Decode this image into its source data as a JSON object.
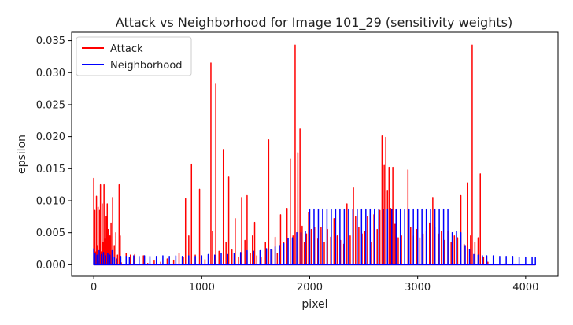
{
  "chart_data": {
    "type": "line",
    "title": "Attack vs Neighborhood for Image 101_29 (sensitivity weights)",
    "xlabel": "pixel",
    "ylabel": "epsilon",
    "xlim": [
      -205,
      4300
    ],
    "ylim": [
      -0.0018,
      0.0363
    ],
    "xticks": [
      0,
      1000,
      2000,
      3000,
      4000
    ],
    "xtick_labels": [
      "0",
      "1000",
      "2000",
      "3000",
      "4000"
    ],
    "yticks": [
      0.0,
      0.005,
      0.01,
      0.015,
      0.02,
      0.025,
      0.03,
      0.035
    ],
    "ytick_labels": [
      "0.000",
      "0.005",
      "0.010",
      "0.015",
      "0.020",
      "0.025",
      "0.030",
      "0.035"
    ],
    "grid": false,
    "legend_position": "top-left",
    "series": [
      {
        "name": "Attack",
        "color": "#ff0000",
        "x": [
          0,
          5,
          10,
          20,
          25,
          30,
          40,
          48,
          55,
          62,
          70,
          78,
          85,
          95,
          105,
          115,
          125,
          135,
          150,
          160,
          175,
          190,
          205,
          220,
          235,
          245,
          255,
          300,
          340,
          380,
          420,
          460,
          500,
          560,
          620,
          680,
          740,
          790,
          830,
          850,
          880,
          905,
          940,
          980,
          1030,
          1085,
          1100,
          1130,
          1160,
          1200,
          1225,
          1250,
          1280,
          1310,
          1340,
          1370,
          1400,
          1420,
          1450,
          1470,
          1490,
          1510,
          1550,
          1590,
          1620,
          1650,
          1680,
          1700,
          1730,
          1760,
          1790,
          1820,
          1845,
          1865,
          1890,
          1910,
          1930,
          1950,
          1970,
          1990,
          2015,
          2045,
          2075,
          2105,
          2135,
          2165,
          2195,
          2225,
          2255,
          2285,
          2315,
          2345,
          2375,
          2405,
          2425,
          2455,
          2485,
          2510,
          2535,
          2565,
          2595,
          2625,
          2650,
          2670,
          2690,
          2705,
          2720,
          2735,
          2750,
          2770,
          2790,
          2820,
          2850,
          2880,
          2910,
          2935,
          2960,
          2990,
          3020,
          3050,
          3080,
          3110,
          3140,
          3160,
          3190,
          3220,
          3250,
          3280,
          3310,
          3340,
          3370,
          3400,
          3430,
          3460,
          3490,
          3505,
          3530,
          3560,
          3580,
          3610,
          3650,
          3700,
          3800,
          3900,
          4000,
          4090
        ],
        "values": [
          0.0135,
          0.004,
          0.0085,
          0.002,
          0.0107,
          0.003,
          0.009,
          0.0005,
          0.0085,
          0.0125,
          0.002,
          0.0095,
          0.0035,
          0.0125,
          0.004,
          0.0075,
          0.0095,
          0.0055,
          0.0045,
          0.0065,
          0.0105,
          0.003,
          0.005,
          0.0015,
          0.0125,
          0.0045,
          0.0003,
          0.0018,
          0.0015,
          0.0016,
          0.0008,
          0.0014,
          0.0002,
          0.0006,
          0.0004,
          0.0009,
          0.0007,
          0.0018,
          0.0012,
          0.0103,
          0.0045,
          0.0157,
          0.0015,
          0.0118,
          0.0008,
          0.0315,
          0.0052,
          0.0282,
          0.0021,
          0.018,
          0.0035,
          0.0137,
          0.0023,
          0.0072,
          0.0012,
          0.0105,
          0.0038,
          0.0108,
          0.0018,
          0.0045,
          0.0066,
          0.0014,
          0.0011,
          0.0035,
          0.0195,
          0.0023,
          0.0043,
          0.0018,
          0.0078,
          0.0035,
          0.0088,
          0.0165,
          0.0045,
          0.0343,
          0.0175,
          0.0212,
          0.006,
          0.0035,
          0.0048,
          0.0082,
          0.0055,
          0.0058,
          0.004,
          0.0058,
          0.0035,
          0.0055,
          0.0043,
          0.0072,
          0.0045,
          0.0038,
          0.0032,
          0.0095,
          0.0045,
          0.012,
          0.0075,
          0.0058,
          0.0048,
          0.0052,
          0.0075,
          0.0035,
          0.0078,
          0.0055,
          0.0085,
          0.0201,
          0.0155,
          0.0199,
          0.0115,
          0.0152,
          0.0088,
          0.0152,
          0.0063,
          0.0042,
          0.0045,
          0.0038,
          0.0148,
          0.0058,
          0.0045,
          0.0055,
          0.0042,
          0.0048,
          0.0052,
          0.0065,
          0.0105,
          0.0058,
          0.0048,
          0.0052,
          0.0038,
          0.0052,
          0.0035,
          0.0045,
          0.0042,
          0.0108,
          0.0032,
          0.0128,
          0.0045,
          0.0343,
          0.0035,
          0.0042,
          0.0142,
          0.0012,
          0.0004,
          0.0002,
          0.0001,
          0.0001,
          0.0001,
          0.0001
        ]
      },
      {
        "name": "Neighborhood",
        "color": "#0000ff",
        "x": [
          0,
          6,
          12,
          30,
          50,
          70,
          90,
          110,
          130,
          150,
          170,
          190,
          210,
          250,
          300,
          330,
          370,
          420,
          470,
          520,
          580,
          640,
          700,
          760,
          820,
          880,
          940,
          1000,
          1060,
          1120,
          1180,
          1240,
          1300,
          1360,
          1420,
          1480,
          1540,
          1600,
          1640,
          1680,
          1720,
          1760,
          1800,
          1840,
          1880,
          1920,
          1960,
          2000,
          2040,
          2080,
          2120,
          2160,
          2200,
          2240,
          2280,
          2320,
          2360,
          2400,
          2440,
          2480,
          2520,
          2560,
          2600,
          2640,
          2680,
          2720,
          2760,
          2800,
          2840,
          2880,
          2920,
          2960,
          3000,
          3040,
          3080,
          3120,
          3160,
          3200,
          3240,
          3280,
          3320,
          3360,
          3400,
          3440,
          3480,
          3520,
          3560,
          3600,
          3640,
          3700,
          3760,
          3820,
          3880,
          3940,
          4000,
          4060,
          4090
        ],
        "values": [
          0.0025,
          0.0012,
          0.0018,
          0.0015,
          0.0022,
          0.0016,
          0.0019,
          0.0014,
          0.0018,
          0.0015,
          0.0022,
          0.0012,
          0.0009,
          0.0013,
          0.0013,
          0.0012,
          0.0014,
          0.0013,
          0.0014,
          0.0013,
          0.0013,
          0.0014,
          0.0013,
          0.0014,
          0.0013,
          0.0014,
          0.0013,
          0.0014,
          0.0016,
          0.0015,
          0.0018,
          0.0016,
          0.0018,
          0.0019,
          0.0022,
          0.0021,
          0.0022,
          0.0025,
          0.0024,
          0.0028,
          0.003,
          0.0033,
          0.0041,
          0.0042,
          0.005,
          0.005,
          0.0052,
          0.0087,
          0.0087,
          0.0087,
          0.0087,
          0.0087,
          0.0087,
          0.0087,
          0.0087,
          0.0087,
          0.0087,
          0.0087,
          0.0087,
          0.0087,
          0.0087,
          0.0087,
          0.0087,
          0.0087,
          0.0087,
          0.0087,
          0.0087,
          0.0087,
          0.0087,
          0.0087,
          0.0087,
          0.0087,
          0.0087,
          0.0087,
          0.0087,
          0.0087,
          0.0087,
          0.0087,
          0.0087,
          0.0087,
          0.005,
          0.0052,
          0.005,
          0.003,
          0.0024,
          0.0016,
          0.0015,
          0.0014,
          0.0014,
          0.0014,
          0.0013,
          0.0013,
          0.0013,
          0.0012,
          0.0012,
          0.0012,
          0.0011
        ]
      }
    ]
  }
}
